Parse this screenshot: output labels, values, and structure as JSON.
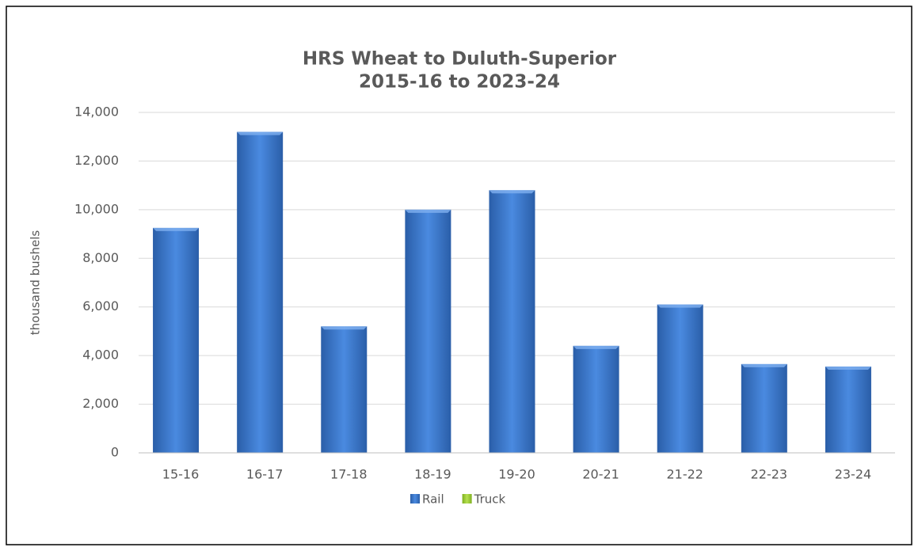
{
  "chart_data": {
    "type": "bar",
    "title": "HRS Wheat to Duluth-Superior",
    "subtitle": "2015-16 to 2023-24",
    "y_label": "thousand bushels",
    "categories": [
      "15-16",
      "16-17",
      "17-18",
      "18-19",
      "19-20",
      "20-21",
      "21-22",
      "22-23",
      "23-24"
    ],
    "series": [
      {
        "name": "Rail",
        "color": "#3a75c4",
        "values": [
          9250,
          13200,
          5200,
          10000,
          10800,
          4400,
          6100,
          3650,
          3550
        ]
      },
      {
        "name": "Truck",
        "color": "#9acd32",
        "values": [
          0,
          0,
          0,
          0,
          0,
          0,
          0,
          0,
          0
        ]
      }
    ],
    "ylim": [
      0,
      14000
    ],
    "yticks": [
      0,
      {
        "value": 2000,
        "label": "2,000"
      },
      {
        "value": 4000,
        "label": "4,000"
      },
      {
        "value": 6000,
        "label": "6,000"
      },
      {
        "value": 8000,
        "label": "8,000"
      },
      {
        "value": 10000,
        "label": "10,000"
      },
      {
        "value": 12000,
        "label": "12,000"
      },
      {
        "value": 14000,
        "label": "14,000"
      }
    ],
    "grid": true,
    "legend": "bottom"
  }
}
